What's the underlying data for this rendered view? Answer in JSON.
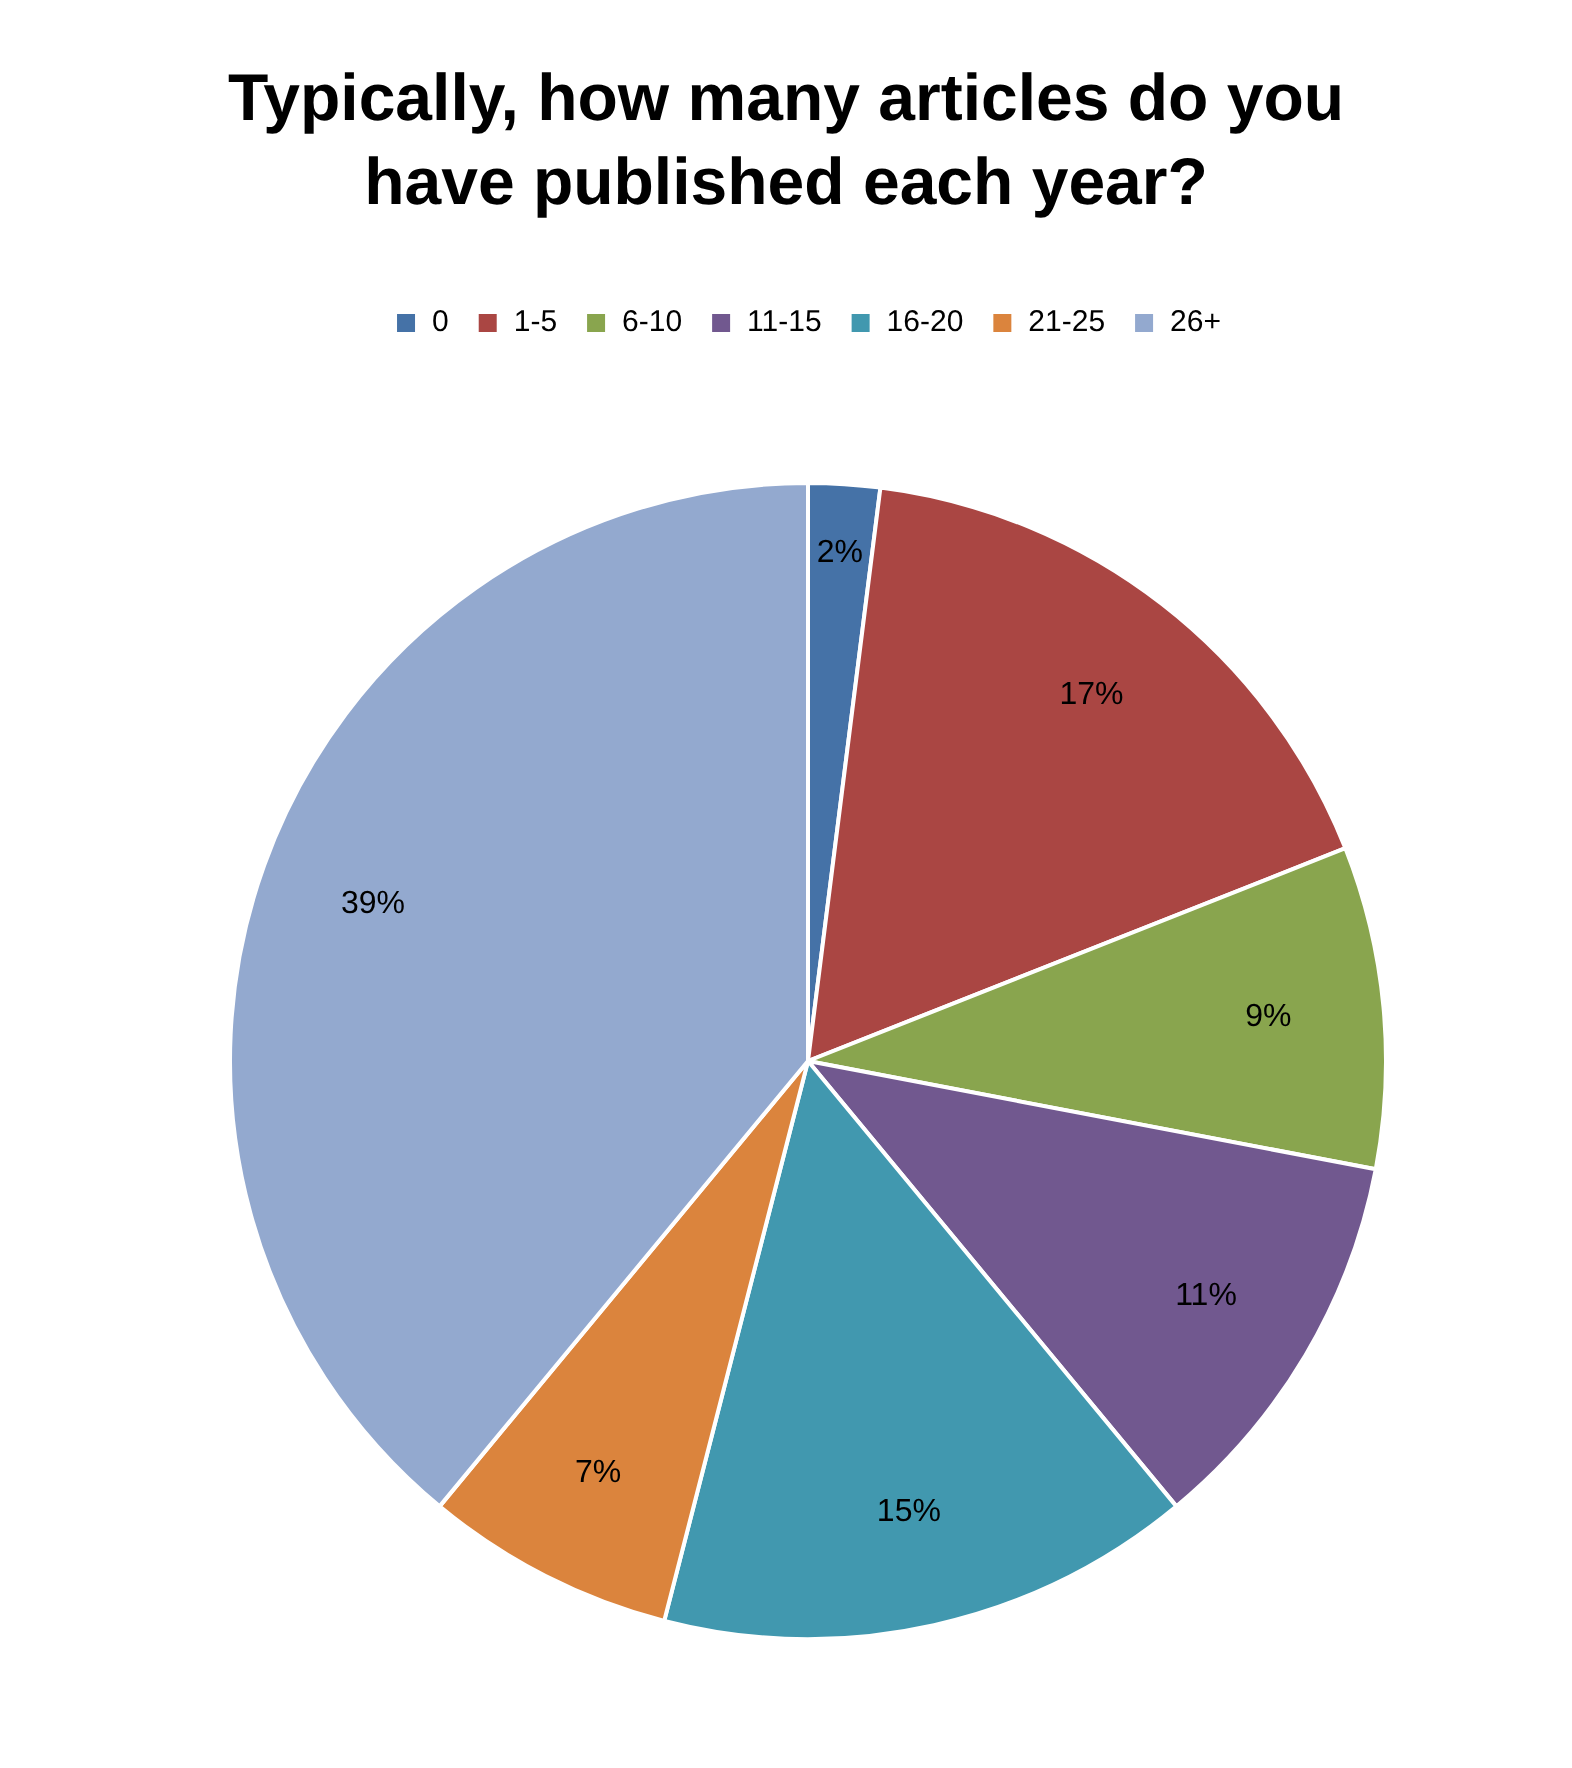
{
  "chart_data": {
    "type": "pie",
    "title": "Typically, how many articles do you have published each year?",
    "categories": [
      "0",
      "1-5",
      "6-10",
      "11-15",
      "16-20",
      "21-25",
      "26+"
    ],
    "values": [
      2,
      17,
      9,
      11,
      15,
      7,
      39
    ],
    "colors": [
      "#4572a7",
      "#aa4643",
      "#89a54e",
      "#71588f",
      "#4198af",
      "#db843d",
      "#93a9cf"
    ],
    "value_labels": [
      "2%",
      "17%",
      "9%",
      "11%",
      "15%",
      "7%",
      "39%"
    ],
    "legend": "top"
  }
}
